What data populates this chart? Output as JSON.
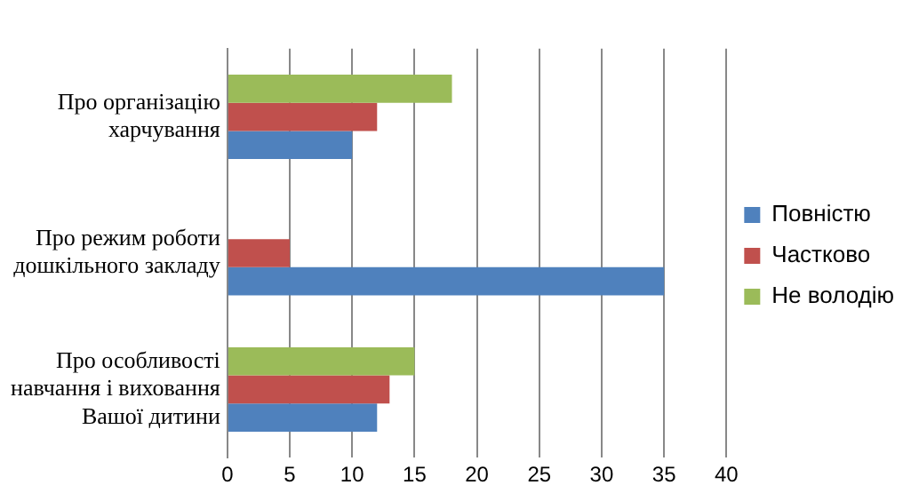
{
  "chart_data": {
    "type": "bar",
    "orientation": "horizontal",
    "categories": [
      "Про організацію харчування",
      "Про режим роботи дошкільного закладу",
      "Про особливості навчання і виховання Вашої дитини"
    ],
    "series": [
      {
        "name": "Повністю",
        "color": "#4f81bd",
        "values": [
          10,
          35,
          12
        ]
      },
      {
        "name": "Частково",
        "color": "#c0504d",
        "values": [
          12,
          5,
          13
        ]
      },
      {
        "name": "Не володію",
        "color": "#9bbb59",
        "values": [
          18,
          0,
          15
        ]
      }
    ],
    "xlim": [
      0,
      40
    ],
    "xticks": [
      0,
      5,
      10,
      15,
      20,
      25,
      30,
      35,
      40
    ],
    "grid": "x",
    "legend": "right"
  }
}
